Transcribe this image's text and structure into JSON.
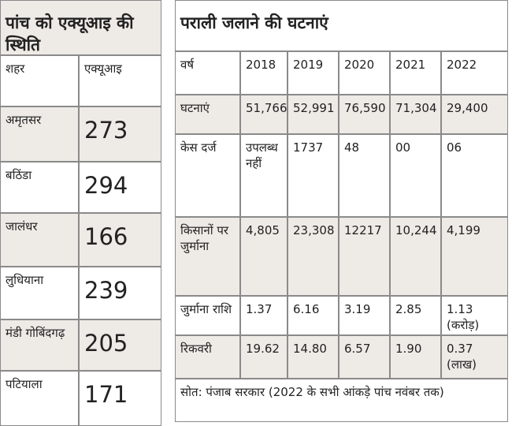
{
  "aqi_table": {
    "title": "पांच को एक्यूआइ की स्थिति",
    "header": [
      "शहर",
      "एक्यूआइ"
    ],
    "rows": [
      [
        "अमृतसर",
        "273"
      ],
      [
        "बठिंडा",
        "294"
      ],
      [
        "जालंधर",
        "166"
      ],
      [
        "लुधियाना",
        "239"
      ],
      [
        "मंडी गोबिंदगढ़",
        "205"
      ],
      [
        "पटियाला",
        "171"
      ]
    ]
  },
  "stubble_table": {
    "title": "पराली जलाने की घटनाएं",
    "header": [
      "वर्ष",
      "2018",
      "2019",
      "2020",
      "2021",
      "2022"
    ],
    "rows": [
      [
        "घटनाएं",
        "51,766",
        "52,991",
        "76,590",
        "71,304",
        "29,400"
      ],
      [
        "केस दर्ज",
        "उपलब्ध नहीं",
        "1737",
        "48",
        "00",
        "06"
      ],
      [
        "किसानों पर जुर्माना",
        "4,805",
        "23,308",
        "12217",
        "10,244",
        "4,199"
      ],
      [
        "जुर्माना राशि",
        "1.37",
        "6.16",
        "3.19",
        "2.85",
        "1.13 (करोड़)"
      ],
      [
        "रिकवरी",
        "19.62",
        "14.80",
        "6.57",
        "1.90",
        "0.37 (लाख)"
      ]
    ],
    "source": "सोत: पंजाब सरकार (2022 के सभी आंकड़े पांच नवंबर तक)"
  }
}
